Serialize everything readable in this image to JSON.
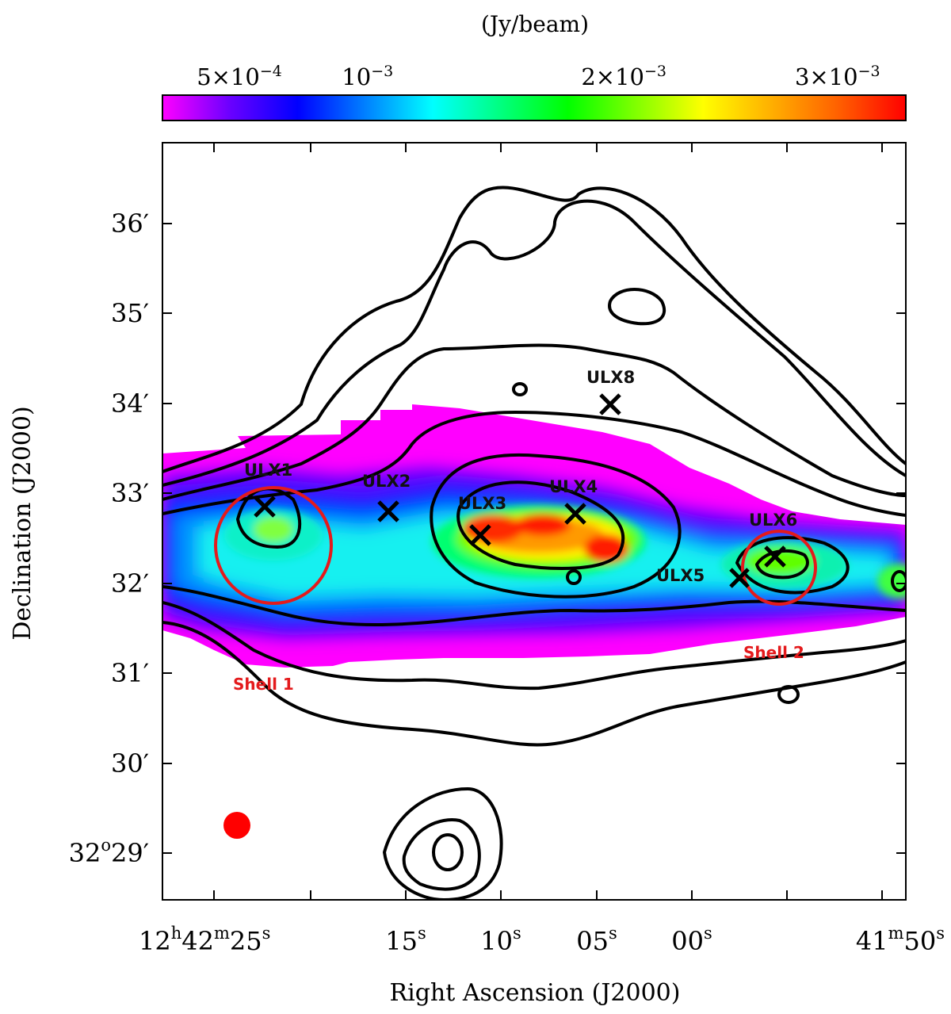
{
  "chart_data": {
    "type": "heatmap",
    "title": "",
    "xlabel": "Right Ascension (J2000)",
    "ylabel": "Declination (J2000)",
    "colorbar": {
      "label": "(Jy/beam)",
      "ticks": [
        {
          "value": 0.0005,
          "label_base": "5×10",
          "label_exp": "−4"
        },
        {
          "value": 0.001,
          "label_base": "10",
          "label_exp": "−3"
        },
        {
          "value": 0.002,
          "label_base": "2×10",
          "label_exp": "−3"
        },
        {
          "value": 0.003,
          "label_base": "3×10",
          "label_exp": "−3"
        }
      ],
      "colors": [
        "#ff00ff",
        "#6a00ff",
        "#0000ff",
        "#0080ff",
        "#00ffff",
        "#00ff80",
        "#00ff00",
        "#80ff00",
        "#ffff00",
        "#ffb000",
        "#ff6000",
        "#ff0000"
      ],
      "range": [
        0.0002,
        0.0031
      ]
    },
    "x_ticks": [
      {
        "value": "12h42m25s",
        "parts": [
          [
            "12",
            ""
          ],
          [
            "h",
            "sup"
          ],
          [
            "42",
            ""
          ],
          [
            "m",
            "sup"
          ],
          [
            "25",
            ""
          ],
          [
            "s",
            "sup"
          ]
        ]
      },
      {
        "value": "15s",
        "parts": [
          [
            "15",
            ""
          ],
          [
            "s",
            "sup"
          ]
        ]
      },
      {
        "value": "10s",
        "parts": [
          [
            "10",
            ""
          ],
          [
            "s",
            "sup"
          ]
        ]
      },
      {
        "value": "05s",
        "parts": [
          [
            "05",
            ""
          ],
          [
            "s",
            "sup"
          ]
        ]
      },
      {
        "value": "00s",
        "parts": [
          [
            "00",
            ""
          ],
          [
            "s",
            "sup"
          ]
        ]
      },
      {
        "value": "41m50s",
        "parts": [
          [
            "41",
            ""
          ],
          [
            "m",
            "sup"
          ],
          [
            "50",
            ""
          ],
          [
            "s",
            "sup"
          ]
        ]
      }
    ],
    "y_ticks": [
      {
        "value": "36′",
        "parts": [
          [
            "36′",
            ""
          ]
        ]
      },
      {
        "value": "35′",
        "parts": [
          [
            "35′",
            ""
          ]
        ]
      },
      {
        "value": "34′",
        "parts": [
          [
            "34′",
            ""
          ]
        ]
      },
      {
        "value": "33′",
        "parts": [
          [
            "33′",
            ""
          ]
        ]
      },
      {
        "value": "32′",
        "parts": [
          [
            "32′",
            ""
          ]
        ]
      },
      {
        "value": "31′",
        "parts": [
          [
            "31′",
            ""
          ]
        ]
      },
      {
        "value": "30′",
        "parts": [
          [
            "30′",
            ""
          ]
        ]
      },
      {
        "value": "32°29′",
        "parts": [
          [
            "32",
            ""
          ],
          [
            "o",
            "sup"
          ],
          [
            "29′",
            ""
          ]
        ]
      }
    ],
    "sources": [
      {
        "label": "ULX1",
        "ra_s": 22.0,
        "dec_arcmin": 32.8
      },
      {
        "label": "ULX2",
        "ra_s": 16.1,
        "dec_arcmin": 32.8
      },
      {
        "label": "ULX3",
        "ra_s": 11.2,
        "dec_arcmin": 32.6
      },
      {
        "label": "ULX4",
        "ra_s": 6.1,
        "dec_arcmin": 32.8
      },
      {
        "label": "ULX5",
        "ra_s": -2.5,
        "dec_arcmin": 32.1
      },
      {
        "label": "ULX6",
        "ra_s": -4.7,
        "dec_arcmin": 32.3
      },
      {
        "label": "ULX8",
        "ra_s": 4.1,
        "dec_arcmin": 34.0
      }
    ],
    "shells": [
      {
        "label": "Shell 1",
        "color": "#e41a1c"
      },
      {
        "label": "Shell 2",
        "color": "#e41a1c"
      }
    ],
    "beam": {
      "color": "#ff0000"
    },
    "contour_color": "#000000",
    "marker_color": "#000000"
  }
}
